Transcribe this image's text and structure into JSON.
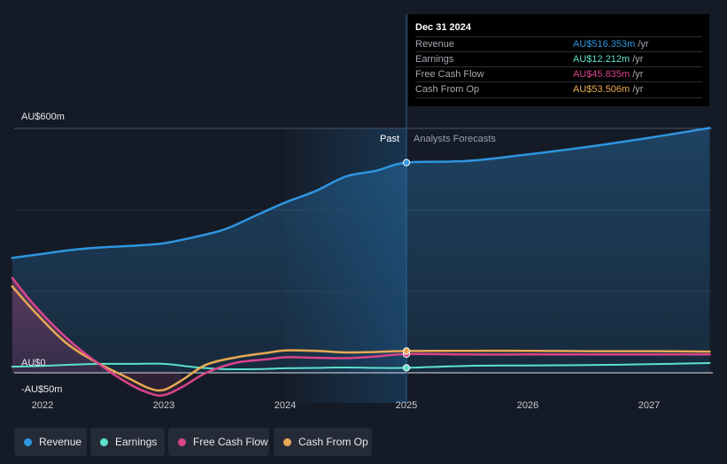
{
  "chart_data": {
    "type": "line",
    "x_label_ticks": [
      "2022",
      "2023",
      "2024",
      "2025",
      "2026",
      "2027"
    ],
    "x_tick_values": [
      2022,
      2023,
      2024,
      2025,
      2026,
      2027
    ],
    "xlim": [
      2021.75,
      2027.5
    ],
    "ylim": [
      -50,
      600
    ],
    "y_ticks": [
      "AU$600m",
      "AU$0",
      "-AU$50m"
    ],
    "past_label": "Past",
    "forecast_label": "Analysts Forecasts",
    "past_end": 2025,
    "shaded_past_start": 2024,
    "series": [
      {
        "name": "Revenue",
        "color": "#2f95e0",
        "x": [
          2021.75,
          2022.0,
          2022.25,
          2022.5,
          2022.75,
          2023.0,
          2023.25,
          2023.5,
          2023.75,
          2024.0,
          2024.25,
          2024.5,
          2024.75,
          2025.0,
          2025.5,
          2026.0,
          2026.5,
          2027.0,
          2027.5
        ],
        "values": [
          282,
          292,
          302,
          308,
          312,
          318,
          333,
          352,
          385,
          418,
          446,
          482,
          496,
          516,
          520,
          536,
          555,
          577,
          601
        ]
      },
      {
        "name": "Earnings",
        "color": "#5de0cc",
        "x": [
          2021.75,
          2022.0,
          2022.25,
          2022.5,
          2022.75,
          2023.0,
          2023.25,
          2023.5,
          2023.75,
          2024.0,
          2024.25,
          2024.5,
          2024.75,
          2025.0,
          2025.5,
          2026.0,
          2026.5,
          2027.0,
          2027.5
        ],
        "values": [
          15,
          17,
          20,
          22,
          22,
          22,
          14,
          9,
          9,
          11,
          12,
          13,
          12,
          12.2,
          17,
          18,
          19,
          21,
          24
        ]
      },
      {
        "name": "Free Cash Flow",
        "color": "#d8458a",
        "x": [
          2021.75,
          2021.95,
          2022.2,
          2022.45,
          2022.7,
          2022.88,
          2023.0,
          2023.15,
          2023.35,
          2023.6,
          2023.85,
          2024.0,
          2024.25,
          2024.5,
          2024.75,
          2025.0,
          2025.5,
          2026.0,
          2026.5,
          2027.0,
          2027.5
        ],
        "values": [
          233,
          160,
          85,
          25,
          -25,
          -50,
          -55,
          -35,
          0,
          25,
          33,
          38,
          37,
          36,
          40,
          45.8,
          45,
          45,
          45,
          45,
          45
        ]
      },
      {
        "name": "Cash From Op",
        "color": "#e8a953",
        "x": [
          2021.75,
          2021.95,
          2022.2,
          2022.45,
          2022.7,
          2022.88,
          2023.0,
          2023.15,
          2023.35,
          2023.6,
          2023.85,
          2024.0,
          2024.25,
          2024.5,
          2024.75,
          2025.0,
          2025.5,
          2026.0,
          2026.5,
          2027.0,
          2027.5
        ],
        "values": [
          212,
          145,
          72,
          25,
          -12,
          -38,
          -42,
          -18,
          20,
          38,
          49,
          55,
          54,
          50,
          51,
          53.5,
          54,
          54,
          53,
          53,
          52
        ]
      }
    ]
  },
  "tooltip": {
    "date": "Dec 31 2024",
    "rows": [
      {
        "label": "Revenue",
        "value": "AU$516.353m",
        "unit": "/yr",
        "color": "#2f95e0"
      },
      {
        "label": "Earnings",
        "value": "AU$12.212m",
        "unit": "/yr",
        "color": "#5de0cc"
      },
      {
        "label": "Free Cash Flow",
        "value": "AU$45.835m",
        "unit": "/yr",
        "color": "#d8458a"
      },
      {
        "label": "Cash From Op",
        "value": "AU$53.506m",
        "unit": "/yr",
        "color": "#e8a953"
      }
    ]
  },
  "legend": [
    {
      "label": "Revenue",
      "color": "#2f95e0"
    },
    {
      "label": "Earnings",
      "color": "#5de0cc"
    },
    {
      "label": "Free Cash Flow",
      "color": "#d8458a"
    },
    {
      "label": "Cash From Op",
      "color": "#e8a953"
    }
  ]
}
